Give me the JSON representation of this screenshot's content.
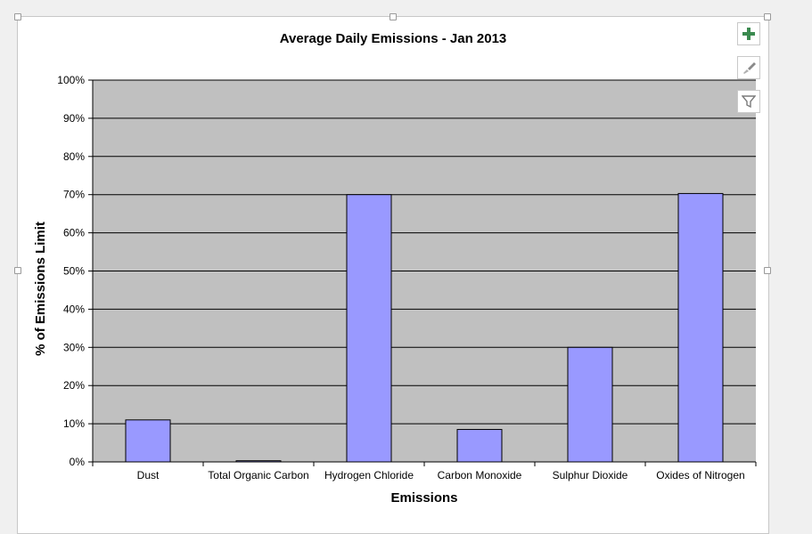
{
  "chart_data": {
    "type": "bar",
    "title": "Average Daily Emissions - Jan 2013",
    "xlabel": "Emissions",
    "ylabel": "% of Emissions Limit",
    "categories": [
      "Dust",
      "Total Organic Carbon",
      "Hydrogen Chloride",
      "Carbon Monoxide",
      "Sulphur Dioxide",
      "Oxides of Nitrogen"
    ],
    "values": [
      11,
      0.3,
      70,
      8.5,
      30,
      70.3
    ],
    "ylim": [
      0,
      100
    ],
    "yticks": [
      "0%",
      "10%",
      "20%",
      "30%",
      "40%",
      "50%",
      "60%",
      "70%",
      "80%",
      "90%",
      "100%"
    ],
    "grid": true,
    "legend": "none",
    "colors": {
      "bar": "#9999ff",
      "plot_background": "#c0c0c0",
      "gridline": "#000000"
    }
  },
  "toolbar": {
    "buttons": [
      {
        "name": "chart-elements-button",
        "icon": "plus-icon"
      },
      {
        "name": "chart-styles-button",
        "icon": "brush-icon"
      },
      {
        "name": "chart-filters-button",
        "icon": "filter-icon"
      }
    ]
  }
}
